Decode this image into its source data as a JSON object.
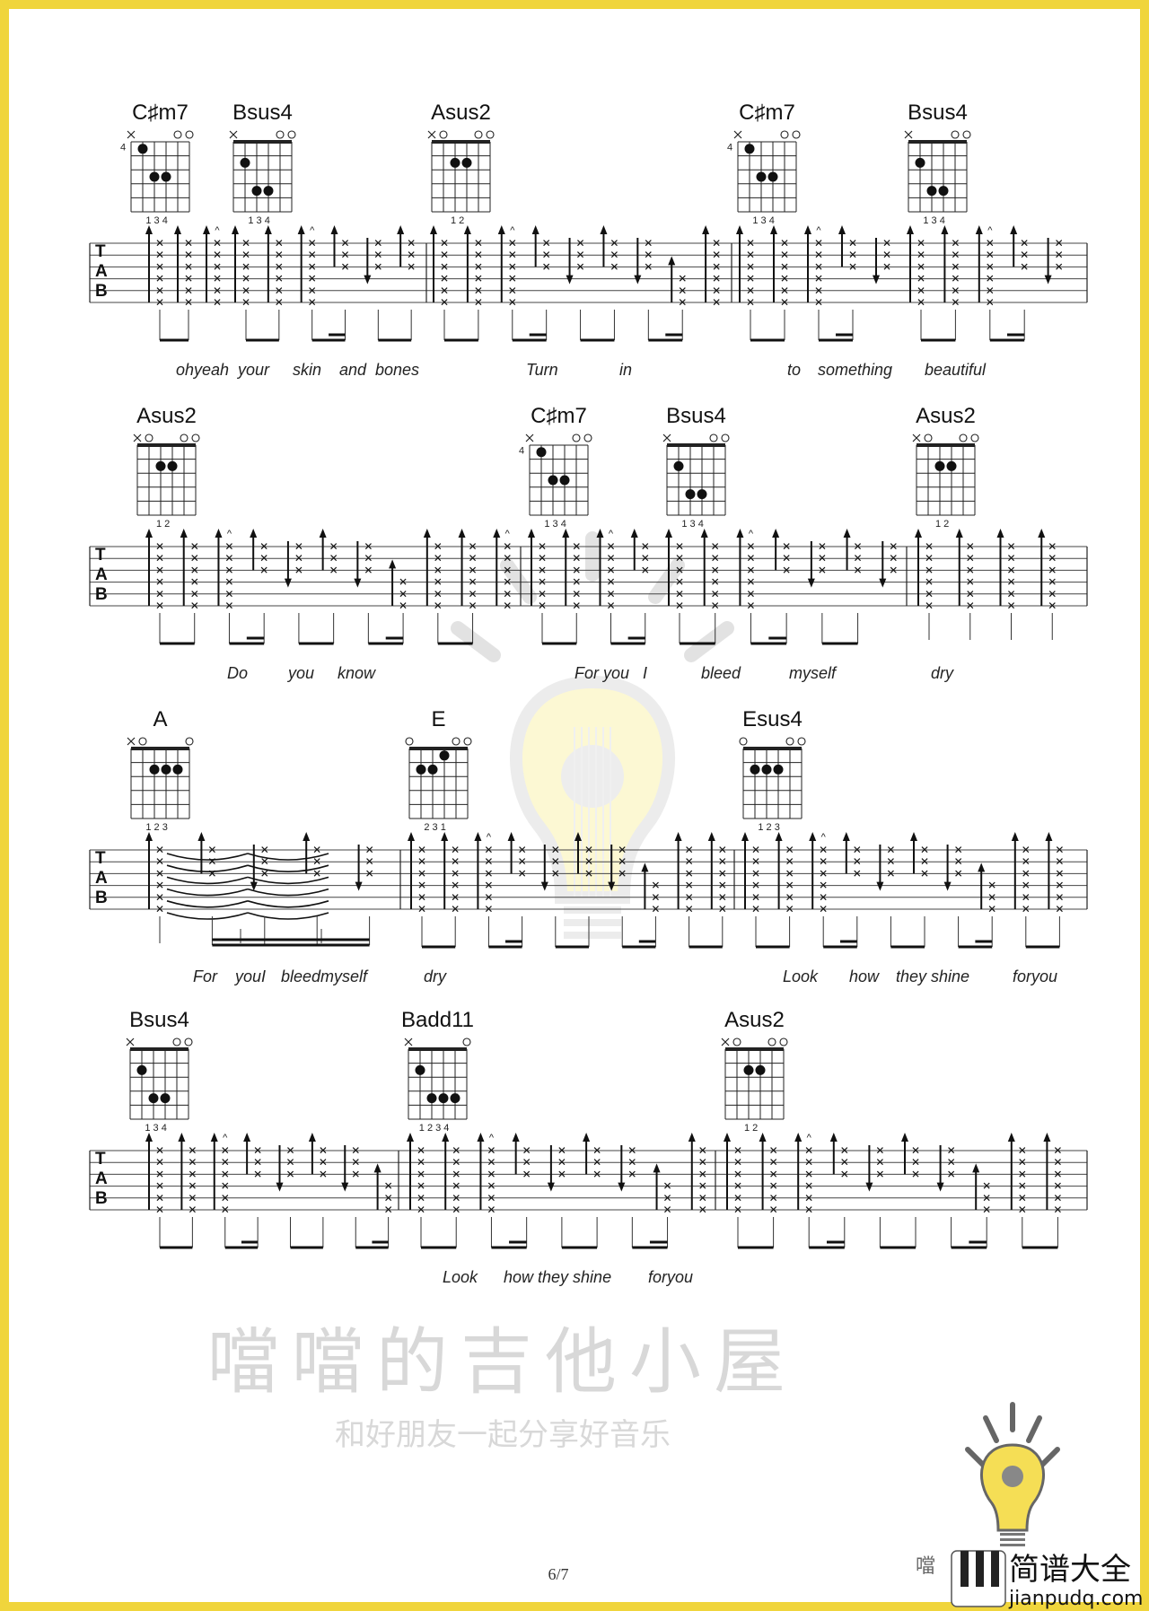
{
  "colors": {
    "border": "#f0d53c",
    "bulb": "#f5de55",
    "ink": "#111111",
    "watermark": "#d8d8d8"
  },
  "watermark": {
    "title": "噹噹的吉他小屋",
    "subtitle": "和好朋友一起分享好音乐",
    "icon": "lightbulb-guitar-icon"
  },
  "chords": {
    "C#m7": {
      "name": "C♯m7",
      "top": [
        "x",
        "",
        "",
        "",
        "o",
        "o"
      ],
      "nut": false,
      "fret_label": "4",
      "dots": [
        [
          2,
          1
        ],
        [
          3,
          3
        ],
        [
          4,
          3
        ]
      ],
      "fingers": "1 3 4"
    },
    "Bsus4": {
      "name": "Bsus4",
      "top": [
        "x",
        "",
        "",
        "",
        "o",
        "o"
      ],
      "nut": true,
      "fret_label": "",
      "dots": [
        [
          2,
          2
        ],
        [
          3,
          4
        ],
        [
          4,
          4
        ]
      ],
      "fingers": "1 3 4"
    },
    "Asus2": {
      "name": "Asus2",
      "top": [
        "x",
        "o",
        "",
        "",
        "o",
        "o"
      ],
      "nut": true,
      "fret_label": "",
      "dots": [
        [
          3,
          2
        ],
        [
          4,
          2
        ]
      ],
      "fingers": "1 2"
    },
    "A": {
      "name": "A",
      "top": [
        "x",
        "o",
        "",
        "",
        "",
        "o"
      ],
      "nut": true,
      "fret_label": "",
      "dots": [
        [
          3,
          2
        ],
        [
          4,
          2
        ],
        [
          5,
          2
        ]
      ],
      "fingers": "1 2 3"
    },
    "E": {
      "name": "E",
      "top": [
        "o",
        "",
        "",
        "",
        "o",
        "o"
      ],
      "nut": true,
      "fret_label": "",
      "dots": [
        [
          2,
          2
        ],
        [
          3,
          2
        ],
        [
          4,
          1
        ]
      ],
      "fingers": "2 3 1"
    },
    "Esus4": {
      "name": "Esus4",
      "top": [
        "o",
        "",
        "",
        "",
        "o",
        "o"
      ],
      "nut": true,
      "fret_label": "",
      "dots": [
        [
          2,
          2
        ],
        [
          3,
          2
        ],
        [
          4,
          2
        ]
      ],
      "fingers": "1 2 3"
    },
    "Badd11": {
      "name": "Badd11",
      "top": [
        "x",
        "",
        "",
        "",
        "",
        "o"
      ],
      "nut": true,
      "fret_label": "",
      "dots": [
        [
          2,
          2
        ],
        [
          3,
          4
        ],
        [
          4,
          4
        ],
        [
          5,
          4
        ]
      ],
      "fingers": "1 2 3 4"
    }
  },
  "tab_clef": [
    "T",
    "A",
    "B"
  ],
  "systems": [
    {
      "chords": [
        "C#m7",
        "Bsus4",
        "Asus2",
        "C#m7",
        "Bsus4"
      ],
      "lyrics": [
        "ohyeah",
        "your",
        "skin",
        "and",
        "bones",
        "Turn",
        "in",
        "to",
        "something",
        "beautiful"
      ]
    },
    {
      "chords": [
        "Asus2",
        "C#m7",
        "Bsus4",
        "Asus2"
      ],
      "lyrics": [
        "Do",
        "you",
        "know",
        "For you",
        "I",
        "bleed",
        "myself",
        "dry"
      ]
    },
    {
      "chords": [
        "A",
        "E",
        "Esus4"
      ],
      "lyrics": [
        "For",
        "youI",
        "bleedmyself",
        "dry",
        "Look",
        "how",
        "they shine",
        "foryou"
      ]
    },
    {
      "chords": [
        "Bsus4",
        "Badd11",
        "Asus2"
      ],
      "lyrics": [
        "Look",
        "how they shine",
        "foryou"
      ]
    }
  ],
  "footer": {
    "page": "6/7",
    "logo_cn": "简谱大全",
    "logo_url_text": "jianpudq.com",
    "logo_small": "噹"
  }
}
